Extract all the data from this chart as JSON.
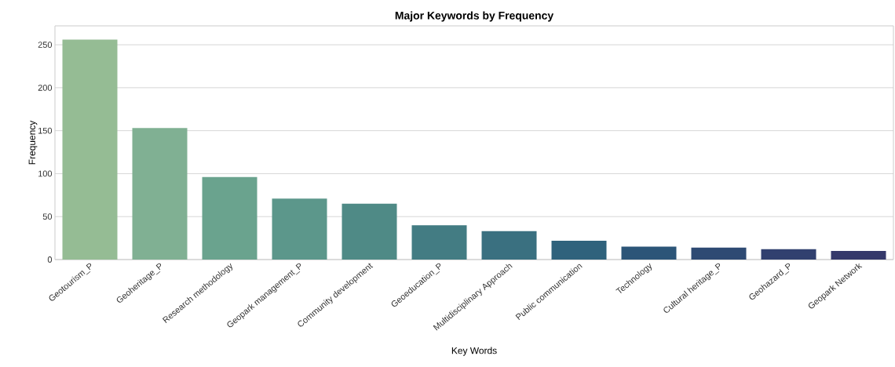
{
  "chart_data": {
    "type": "bar",
    "title": "Major Keywords by Frequency",
    "xlabel": "Key Words",
    "ylabel": "Frequency",
    "categories": [
      "Geotourism_P",
      "Geoheritage_P",
      "Research methodology",
      "Geopark management_P",
      "Community development",
      "Geoeducation_P",
      "Multidisciplinary Approach",
      "Public communication",
      "Technology",
      "Cultural heritage_P",
      "Geohazard_P",
      "Geopark Network"
    ],
    "values": [
      256,
      153,
      96,
      71,
      65,
      40,
      33,
      22,
      15,
      14,
      12,
      10
    ],
    "colors": [
      "#95bc94",
      "#80b093",
      "#6aa38e",
      "#5c978b",
      "#4f8a86",
      "#437c83",
      "#3a7080",
      "#2f627c",
      "#2c5578",
      "#2e4a73",
      "#31406f",
      "#35396b"
    ],
    "ylim": [
      0,
      272
    ],
    "yticks": [
      0,
      50,
      100,
      150,
      200,
      250
    ],
    "grid": "y"
  }
}
